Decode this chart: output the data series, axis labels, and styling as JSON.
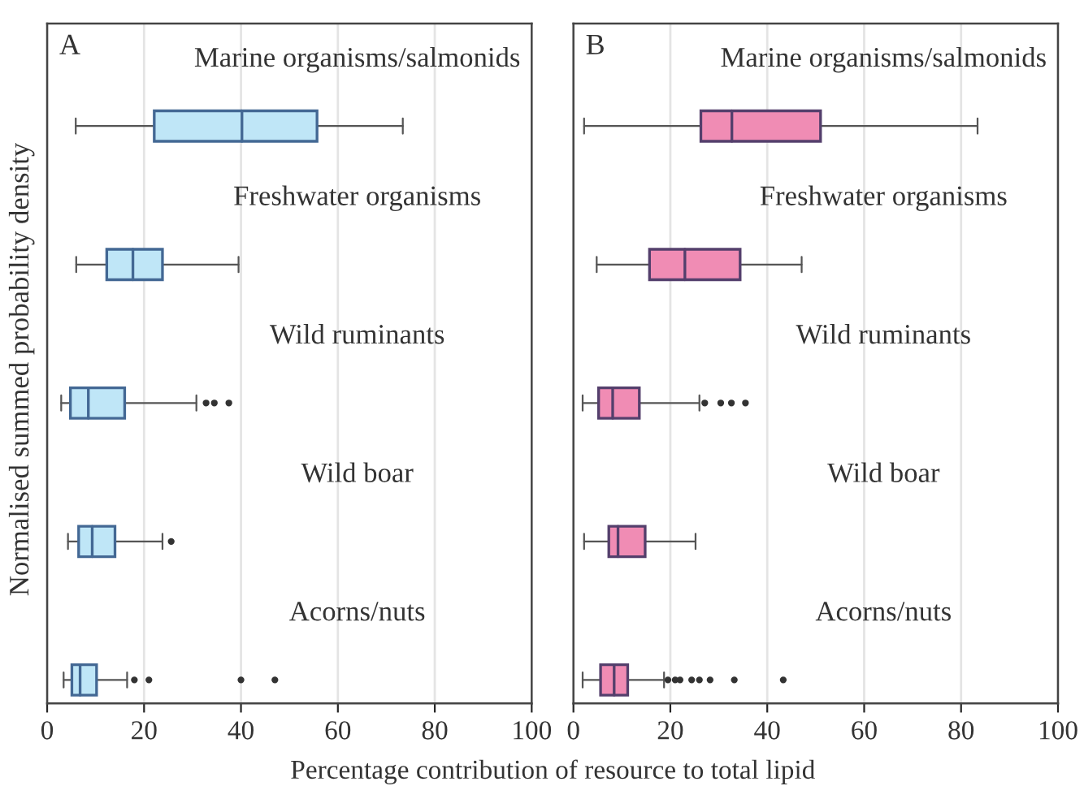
{
  "chart_data": [
    {
      "type": "box",
      "orientation": "horizontal",
      "title": "A",
      "ylabel": "Normalised summed probability density",
      "xlabel": "Percentage contribution of resource to total lipid",
      "categories": [
        "Marine organisms/salmonids",
        "Freshwater organisms",
        "Wild ruminants",
        "Wild boar",
        "Acorns/nuts"
      ],
      "xlim": [
        0,
        100
      ],
      "xticks": [
        0,
        20,
        40,
        60,
        80,
        100
      ],
      "grid": "x",
      "color": "#bfe6f7",
      "boxes": [
        {
          "low": 5.9,
          "q1": 22.1,
          "median": 40.2,
          "q3": 55.7,
          "high": 73.4
        },
        {
          "low": 6,
          "q1": 12.3,
          "median": 17.7,
          "q3": 23.8,
          "high": 39.5
        },
        {
          "low": 2.9,
          "q1": 4.8,
          "median": 8.5,
          "q3": 16,
          "high": 30.8,
          "outliers": [
            32.8,
            34.5,
            37.5
          ]
        },
        {
          "low": 4.3,
          "q1": 6.5,
          "median": 9.3,
          "q3": 14,
          "high": 23.8,
          "outliers": [
            25.6
          ]
        },
        {
          "low": 3.4,
          "q1": 5.1,
          "median": 6.8,
          "q3": 10.2,
          "high": 16.5,
          "outliers": [
            18,
            21,
            40,
            47
          ]
        }
      ]
    },
    {
      "type": "box",
      "orientation": "horizontal",
      "title": "B",
      "categories": [
        "Marine organisms/salmonids",
        "Freshwater organisms",
        "Wild ruminants",
        "Wild boar",
        "Acorns/nuts"
      ],
      "xlim": [
        0,
        100
      ],
      "xticks": [
        0,
        20,
        40,
        60,
        80,
        100
      ],
      "grid": "x",
      "color": "#f08cb4",
      "boxes": [
        {
          "low": 2.2,
          "q1": 26.3,
          "median": 32.7,
          "q3": 51,
          "high": 83.4
        },
        {
          "low": 4.8,
          "q1": 15.7,
          "median": 23,
          "q3": 34.4,
          "high": 47.1
        },
        {
          "low": 1.9,
          "q1": 5.2,
          "median": 8.1,
          "q3": 13.6,
          "high": 26,
          "outliers": [
            27.1,
            30.4,
            32.6,
            35.5
          ]
        },
        {
          "low": 2.2,
          "q1": 7.3,
          "median": 9.2,
          "q3": 14.8,
          "high": 25.2
        },
        {
          "low": 1.9,
          "q1": 5.6,
          "median": 8.4,
          "q3": 11.2,
          "high": 18.7,
          "outliers": [
            19.5,
            21,
            22,
            24.4,
            26,
            28.2,
            33.2,
            43.3
          ]
        }
      ]
    }
  ]
}
